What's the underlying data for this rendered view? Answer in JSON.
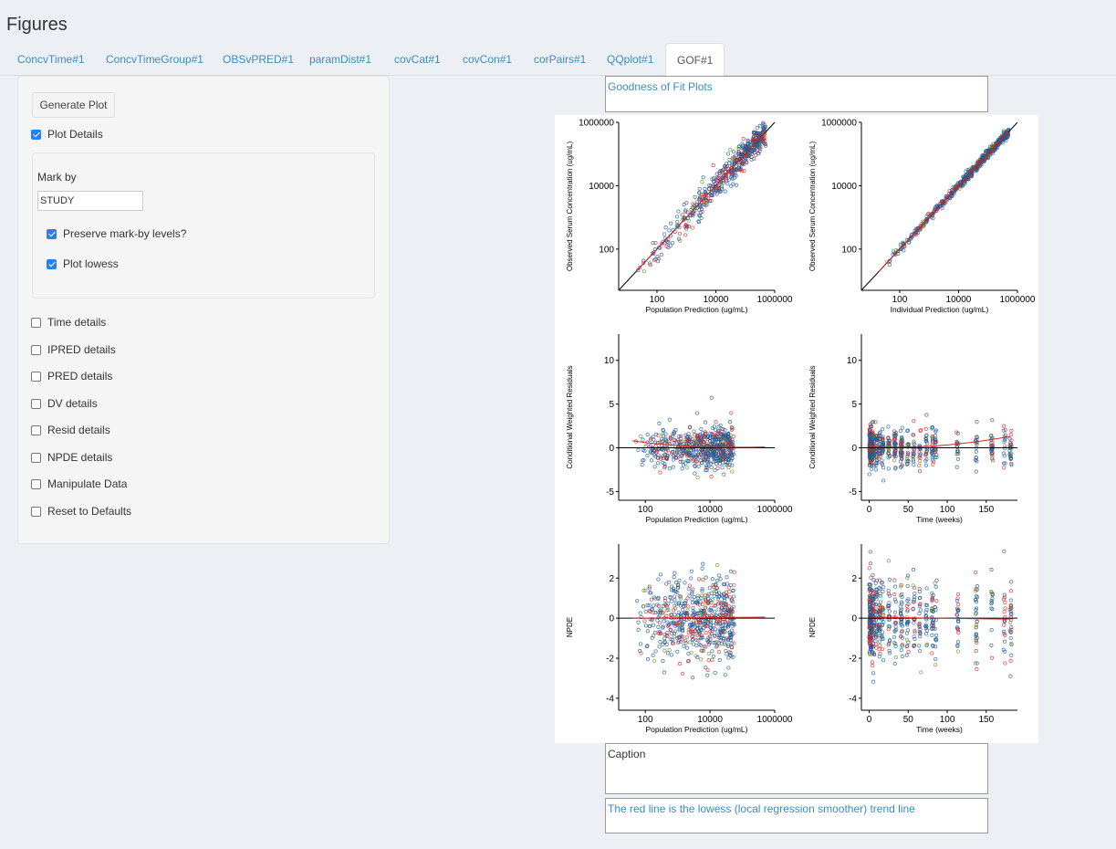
{
  "page": {
    "title": "Figures"
  },
  "tabs": [
    {
      "label": "ConcvTime#1",
      "active": false
    },
    {
      "label": "ConcvTimeGroup#1",
      "active": false
    },
    {
      "label": "OBSvPRED#1",
      "active": false
    },
    {
      "label": "paramDist#1",
      "active": false
    },
    {
      "label": "covCat#1",
      "active": false
    },
    {
      "label": "covCon#1",
      "active": false
    },
    {
      "label": "corPairs#1",
      "active": false
    },
    {
      "label": "QQplot#1",
      "active": false
    },
    {
      "label": "GOF#1",
      "active": true
    }
  ],
  "sidebar": {
    "generate_label": "Generate Plot",
    "plot_details": {
      "label": "Plot Details",
      "checked": true
    },
    "markby": {
      "label": "Mark by",
      "value": "STUDY",
      "preserve": {
        "label": "Preserve mark-by levels?",
        "checked": true
      },
      "lowess": {
        "label": "Plot lowess",
        "checked": true
      }
    },
    "options": [
      {
        "label": "Time details",
        "checked": false
      },
      {
        "label": "IPRED details",
        "checked": false
      },
      {
        "label": "PRED details",
        "checked": false
      },
      {
        "label": "DV details",
        "checked": false
      },
      {
        "label": "Resid details",
        "checked": false
      },
      {
        "label": "NPDE details",
        "checked": false
      },
      {
        "label": "Manipulate Data",
        "checked": false
      },
      {
        "label": "Reset to Defaults",
        "checked": false
      }
    ]
  },
  "title_box": {
    "value": "Goodness of Fit Plots"
  },
  "caption_box": {
    "value": "Caption"
  },
  "footnote_box": {
    "value": "The red line is the lowess (local regression smoother) trend line"
  },
  "colors": {
    "accent": "#3c8dbc",
    "series_blue": "#1f5c99",
    "series_red": "#d62728",
    "series_green": "#6b8e23",
    "lowess": "#d62728"
  },
  "chart_data": [
    {
      "type": "scatter",
      "xlabel": "Population Prediction (ug/mL)",
      "ylabel": "Observed Serum Concentration (ug/mL)",
      "x_scale": "log",
      "y_scale": "log",
      "x_ticks": [
        "100",
        "10000",
        "1000000"
      ],
      "y_ticks": [
        "100",
        "10000",
        "1000000"
      ],
      "xlim": [
        5,
        1000000
      ],
      "ylim": [
        5,
        1000000
      ],
      "reference_line": "identity",
      "lowess": true,
      "series_colors": [
        "#1f5c99",
        "#d62728",
        "#6b8e23"
      ]
    },
    {
      "type": "scatter",
      "xlabel": "Individual Prediction (ug/mL)",
      "ylabel": "Observed Serum Concentration (ug/mL)",
      "x_scale": "log",
      "y_scale": "log",
      "x_ticks": [
        "100",
        "10000",
        "1000000"
      ],
      "y_ticks": [
        "100",
        "10000",
        "1000000"
      ],
      "xlim": [
        5,
        1000000
      ],
      "ylim": [
        5,
        1000000
      ],
      "reference_line": "identity",
      "lowess": true,
      "series_colors": [
        "#1f5c99",
        "#d62728",
        "#6b8e23"
      ]
    },
    {
      "type": "scatter",
      "xlabel": "Population Prediction (ug/mL)",
      "ylabel": "Conditional Weighted Residuals",
      "x_scale": "log",
      "x_ticks": [
        "100",
        "10000",
        "1000000"
      ],
      "y_ticks": [
        "-5",
        "0",
        "5",
        "10"
      ],
      "xlim": [
        15,
        1000000
      ],
      "ylim": [
        -6,
        13
      ],
      "reference_line": "y=0",
      "lowess": true,
      "series_colors": [
        "#1f5c99",
        "#d62728",
        "#6b8e23"
      ]
    },
    {
      "type": "scatter",
      "xlabel": "Time (weeks)",
      "ylabel": "Conditional Weighted Residuals",
      "x_ticks": [
        "0",
        "50",
        "100",
        "150"
      ],
      "y_ticks": [
        "-5",
        "0",
        "5",
        "10"
      ],
      "xlim": [
        -10,
        190
      ],
      "ylim": [
        -6,
        13
      ],
      "reference_line": "y=0",
      "lowess": true,
      "series_colors": [
        "#1f5c99",
        "#d62728",
        "#6b8e23"
      ]
    },
    {
      "type": "scatter",
      "xlabel": "Population Prediction (ug/mL)",
      "ylabel": "NPDE",
      "x_scale": "log",
      "x_ticks": [
        "100",
        "10000",
        "1000000"
      ],
      "y_ticks": [
        "-4",
        "-2",
        "0",
        "2"
      ],
      "xlim": [
        15,
        1000000
      ],
      "ylim": [
        -4.6,
        3.7
      ],
      "reference_line": "y=0",
      "lowess": true,
      "series_colors": [
        "#1f5c99",
        "#d62728",
        "#6b8e23"
      ]
    },
    {
      "type": "scatter",
      "xlabel": "Time (weeks)",
      "ylabel": "NPDE",
      "x_ticks": [
        "0",
        "50",
        "100",
        "150"
      ],
      "y_ticks": [
        "-4",
        "-2",
        "0",
        "2"
      ],
      "xlim": [
        -10,
        190
      ],
      "ylim": [
        -4.6,
        3.7
      ],
      "reference_line": "y=0",
      "lowess": true,
      "series_colors": [
        "#1f5c99",
        "#d62728",
        "#6b8e23"
      ]
    }
  ]
}
